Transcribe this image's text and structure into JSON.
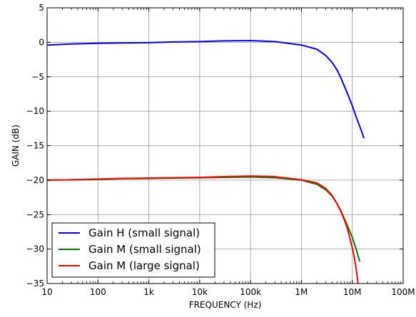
{
  "chart_data": {
    "type": "line",
    "title": "",
    "xlabel": "FREQUENCY (Hz)",
    "ylabel": "GAIN (dB)",
    "x_scale": "log",
    "xlim": [
      10,
      100000000
    ],
    "ylim": [
      -35,
      5
    ],
    "grid": true,
    "legend_position": "lower-left",
    "x_ticks": [
      {
        "value": 10,
        "label": "10"
      },
      {
        "value": 100,
        "label": "100"
      },
      {
        "value": 1000,
        "label": "1k"
      },
      {
        "value": 10000,
        "label": "10k"
      },
      {
        "value": 100000,
        "label": "100k"
      },
      {
        "value": 1000000,
        "label": "1M"
      },
      {
        "value": 10000000,
        "label": "10M"
      },
      {
        "value": 100000000,
        "label": "100M"
      }
    ],
    "y_ticks": [
      {
        "value": 5,
        "label": "5"
      },
      {
        "value": 0,
        "label": "0"
      },
      {
        "value": -5,
        "label": "−5"
      },
      {
        "value": -10,
        "label": "−10"
      },
      {
        "value": -15,
        "label": "−15"
      },
      {
        "value": -20,
        "label": "−20"
      },
      {
        "value": -25,
        "label": "−25"
      },
      {
        "value": -30,
        "label": "−30"
      },
      {
        "value": -35,
        "label": "−35"
      }
    ],
    "series": [
      {
        "name": "Gain H (small signal)",
        "color": "#0000ff",
        "x": [
          10,
          30,
          100,
          300,
          1000,
          3000,
          10000,
          30000,
          100000,
          300000,
          1000000,
          2000000,
          3000000,
          4000000,
          5000000,
          6000000,
          7000000,
          8000000,
          10000000,
          12000000,
          15000000,
          17000000
        ],
        "y": [
          -0.4,
          -0.25,
          -0.15,
          -0.1,
          -0.05,
          0.05,
          0.1,
          0.2,
          0.25,
          0.1,
          -0.4,
          -1.0,
          -1.9,
          -2.9,
          -4.0,
          -5.2,
          -6.4,
          -7.4,
          -9.2,
          -10.9,
          -12.8,
          -13.9
        ]
      },
      {
        "name": "Gain M (small signal)",
        "color": "#008000",
        "x": [
          10,
          30,
          100,
          300,
          1000,
          3000,
          10000,
          30000,
          100000,
          300000,
          1000000,
          2000000,
          3000000,
          4000000,
          5000000,
          6000000,
          7000000,
          8000000,
          10000000,
          12000000,
          14000000
        ],
        "y": [
          -20.0,
          -19.95,
          -19.9,
          -19.8,
          -19.75,
          -19.7,
          -19.65,
          -19.6,
          -19.55,
          -19.65,
          -20.0,
          -20.6,
          -21.4,
          -22.3,
          -23.4,
          -24.5,
          -25.6,
          -26.6,
          -28.3,
          -30.1,
          -31.8
        ]
      },
      {
        "name": "Gain M (large signal)",
        "color": "#ff0000",
        "x": [
          10,
          30,
          100,
          300,
          1000,
          3000,
          10000,
          30000,
          100000,
          300000,
          1000000,
          2000000,
          3000000,
          4000000,
          5000000,
          6000000,
          7000000,
          8000000,
          10000000,
          11000000,
          12000000,
          13000000
        ],
        "y": [
          -20.0,
          -19.95,
          -19.85,
          -19.75,
          -19.7,
          -19.65,
          -19.6,
          -19.5,
          -19.4,
          -19.5,
          -19.95,
          -20.4,
          -21.2,
          -22.2,
          -23.4,
          -24.6,
          -25.8,
          -27.0,
          -29.8,
          -31.3,
          -33.0,
          -35.0
        ]
      }
    ]
  }
}
